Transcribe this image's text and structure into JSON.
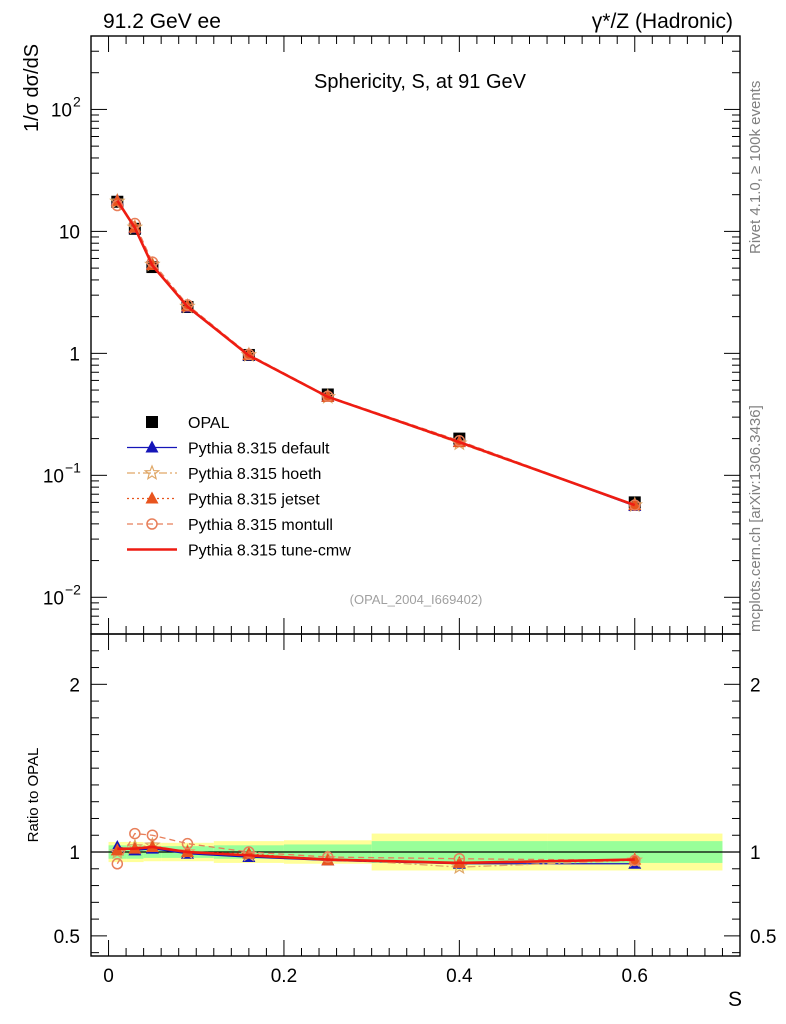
{
  "header": {
    "left": "91.2 GeV ee",
    "right": "γ*/Z (Hadronic)"
  },
  "side_labels": {
    "rivet": "Rivet 4.1.0, ≥ 100k events",
    "mcplots": "mcplots.cern.ch [arXiv:1306.3436]"
  },
  "chart_data": [
    {
      "type": "line",
      "panel": "main",
      "title": "Sphericity, S, at 91 GeV",
      "ylabel": "1/σ  dσ/dS",
      "xlabel": "S",
      "watermark": "(OPAL_2004_I669402)",
      "yscale": "log",
      "xlim": [
        -0.02,
        0.72
      ],
      "ylim": [
        0.005,
        400
      ],
      "yticks": [
        {
          "value": 100,
          "label": "10",
          "exp": "2"
        },
        {
          "value": 10,
          "label": "10",
          "exp": ""
        },
        {
          "value": 1,
          "label": "1",
          "exp": ""
        },
        {
          "value": 0.1,
          "label": "10",
          "exp": "−1"
        },
        {
          "value": 0.01,
          "label": "10",
          "exp": "−2"
        }
      ],
      "x": [
        0.01,
        0.03,
        0.05,
        0.09,
        0.16,
        0.25,
        0.4,
        0.6
      ],
      "series": [
        {
          "name": "OPAL",
          "color": "#000000",
          "values": [
            17.5,
            10.5,
            5.1,
            2.4,
            0.97,
            0.46,
            0.2,
            0.06
          ]
        },
        {
          "name": "Pythia 8.315 default",
          "color": "#1515b8",
          "values": [
            18.0,
            10.6,
            5.3,
            2.38,
            0.96,
            0.44,
            0.188,
            0.056
          ]
        },
        {
          "name": "Pythia 8.315 hoeth",
          "color": "#e0a868",
          "values": [
            17.6,
            10.8,
            5.35,
            2.42,
            0.97,
            0.44,
            0.183,
            0.057
          ]
        },
        {
          "name": "Pythia 8.315 jetset",
          "color": "#e8541e",
          "values": [
            17.8,
            10.7,
            5.3,
            2.42,
            0.97,
            0.44,
            0.187,
            0.057
          ]
        },
        {
          "name": "Pythia 8.315 montull",
          "color": "#e87f5a",
          "values": [
            16.3,
            11.6,
            5.6,
            2.5,
            0.98,
            0.445,
            0.192,
            0.057
          ]
        },
        {
          "name": "Pythia 8.315 tune-cmw",
          "color": "#ee1c12",
          "values": [
            17.9,
            10.7,
            5.25,
            2.42,
            0.96,
            0.44,
            0.187,
            0.057
          ]
        }
      ]
    },
    {
      "type": "line",
      "panel": "ratio",
      "ylabel": "Ratio to OPAL",
      "xlabel": "S",
      "xlim": [
        -0.02,
        0.72
      ],
      "ylim": [
        0.38,
        2.3
      ],
      "yticks": [
        {
          "value": 2,
          "label": "2"
        },
        {
          "value": 1,
          "label": "1"
        },
        {
          "value": 0.5,
          "label": "0.5"
        }
      ],
      "xticks": [
        {
          "value": 0,
          "label": "0"
        },
        {
          "value": 0.2,
          "label": "0.2"
        },
        {
          "value": 0.4,
          "label": "0.4"
        },
        {
          "value": 0.6,
          "label": "0.6"
        }
      ],
      "bins": [
        [
          0,
          0.02
        ],
        [
          0.02,
          0.04
        ],
        [
          0.04,
          0.06
        ],
        [
          0.06,
          0.12
        ],
        [
          0.12,
          0.2
        ],
        [
          0.2,
          0.3
        ],
        [
          0.3,
          0.5
        ],
        [
          0.5,
          0.7
        ]
      ],
      "band_stat": [
        0.04,
        0.04,
        0.035,
        0.035,
        0.04,
        0.045,
        0.065,
        0.065
      ],
      "band_total": [
        0.06,
        0.06,
        0.055,
        0.055,
        0.065,
        0.07,
        0.11,
        0.11
      ],
      "x": [
        0.01,
        0.03,
        0.05,
        0.09,
        0.16,
        0.25,
        0.4,
        0.6
      ],
      "series": [
        {
          "name": "Pythia 8.315 default",
          "values": [
            1.03,
            1.01,
            1.02,
            0.99,
            0.97,
            0.95,
            0.93,
            0.93
          ]
        },
        {
          "name": "Pythia 8.315 hoeth",
          "values": [
            1.0,
            1.03,
            1.04,
            1.0,
            0.985,
            0.96,
            0.91,
            0.95
          ]
        },
        {
          "name": "Pythia 8.315 jetset",
          "values": [
            1.01,
            1.02,
            1.03,
            1.0,
            0.99,
            0.95,
            0.935,
            0.955
          ]
        },
        {
          "name": "Pythia 8.315 montull",
          "values": [
            0.93,
            1.11,
            1.1,
            1.05,
            1.0,
            0.97,
            0.96,
            0.95
          ]
        },
        {
          "name": "Pythia 8.315 tune-cmw",
          "values": [
            1.02,
            1.02,
            1.03,
            1.0,
            0.98,
            0.955,
            0.935,
            0.955
          ]
        }
      ]
    }
  ]
}
